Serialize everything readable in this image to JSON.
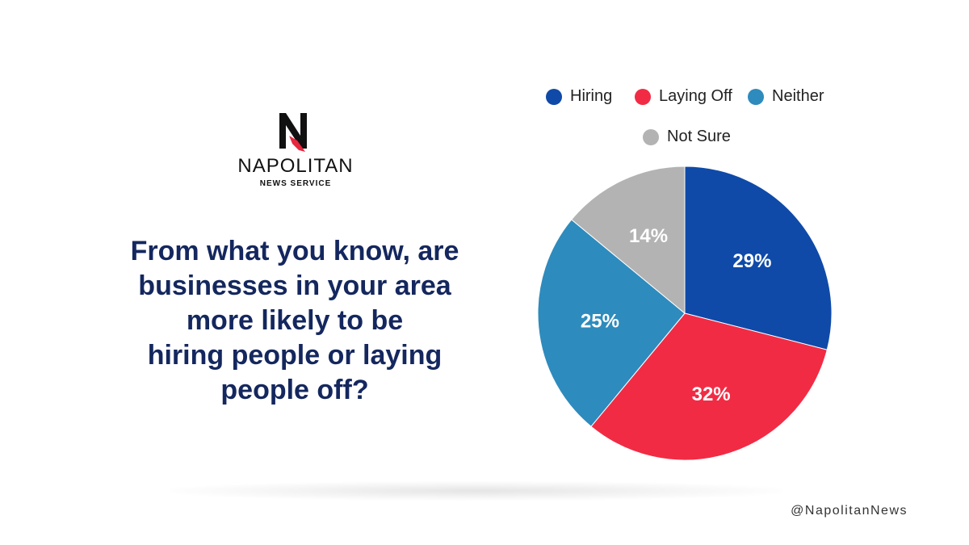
{
  "brand": {
    "name": "NAPOLITAN",
    "subtitle": "NEWS SERVICE",
    "logo_icon": "napolitan-n-bird-logo"
  },
  "question": {
    "lines": [
      "From what you know, are",
      "businesses in your area",
      "more likely to be",
      "hiring people or laying",
      "people off?"
    ]
  },
  "footer": {
    "handle": "@NapolitanNews"
  },
  "chart_data": {
    "type": "pie",
    "title": "From what you know, are businesses in your area more likely to be hiring people or laying people off?",
    "legend_position": "top",
    "slices": [
      {
        "label": "Hiring",
        "value": 29,
        "display": "29%",
        "color": "#0f4aa8"
      },
      {
        "label": "Laying Off",
        "value": 32,
        "display": "32%",
        "color": "#f22b44"
      },
      {
        "label": "Neither",
        "value": 25,
        "display": "25%",
        "color": "#2e8bbd"
      },
      {
        "label": "Not Sure",
        "value": 14,
        "display": "14%",
        "color": "#b3b3b3"
      }
    ]
  }
}
